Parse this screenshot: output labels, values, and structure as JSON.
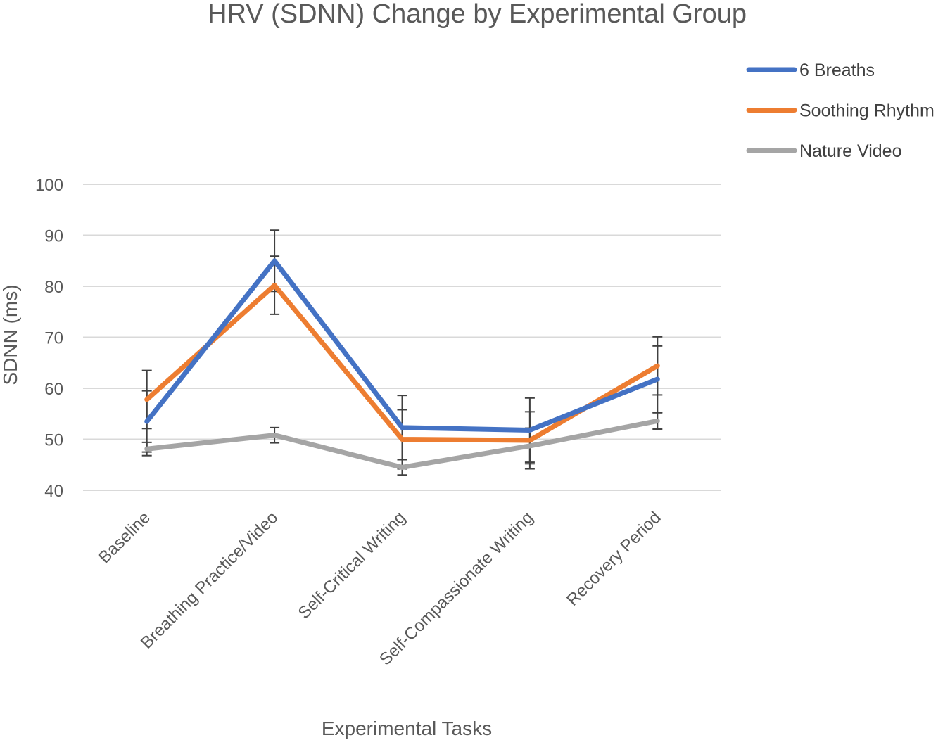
{
  "chart_data": {
    "type": "line",
    "title": "HRV (SDNN) Change by Experimental Group",
    "xlabel": "Experimental Tasks",
    "ylabel": "SDNN (ms)",
    "ylim": [
      40,
      100
    ],
    "yticks": [
      40,
      50,
      60,
      70,
      80,
      90,
      100
    ],
    "grid": true,
    "legend_position": "top-right",
    "categories": [
      "Baseline",
      "Breathing Practice/Video",
      "Self-Critical Writing",
      "Self-Compassionate Writing",
      "Recovery Period"
    ],
    "series": [
      {
        "name": "6 Breaths",
        "color": "#4472C4",
        "values": [
          53.5,
          85.0,
          52.3,
          51.8,
          61.8
        ],
        "error": [
          6.0,
          6.0,
          6.3,
          6.3,
          6.5
        ]
      },
      {
        "name": "Soothing Rhythm",
        "color": "#ED7D31",
        "values": [
          57.8,
          80.2,
          50.0,
          49.8,
          64.4
        ],
        "error": [
          5.7,
          5.7,
          5.8,
          5.6,
          5.7
        ]
      },
      {
        "name": "Nature Video",
        "color": "#A5A5A5",
        "values": [
          48.1,
          50.8,
          44.5,
          48.7,
          53.6
        ],
        "error": [
          1.3,
          1.5,
          1.5,
          3.5,
          1.6
        ]
      }
    ]
  }
}
